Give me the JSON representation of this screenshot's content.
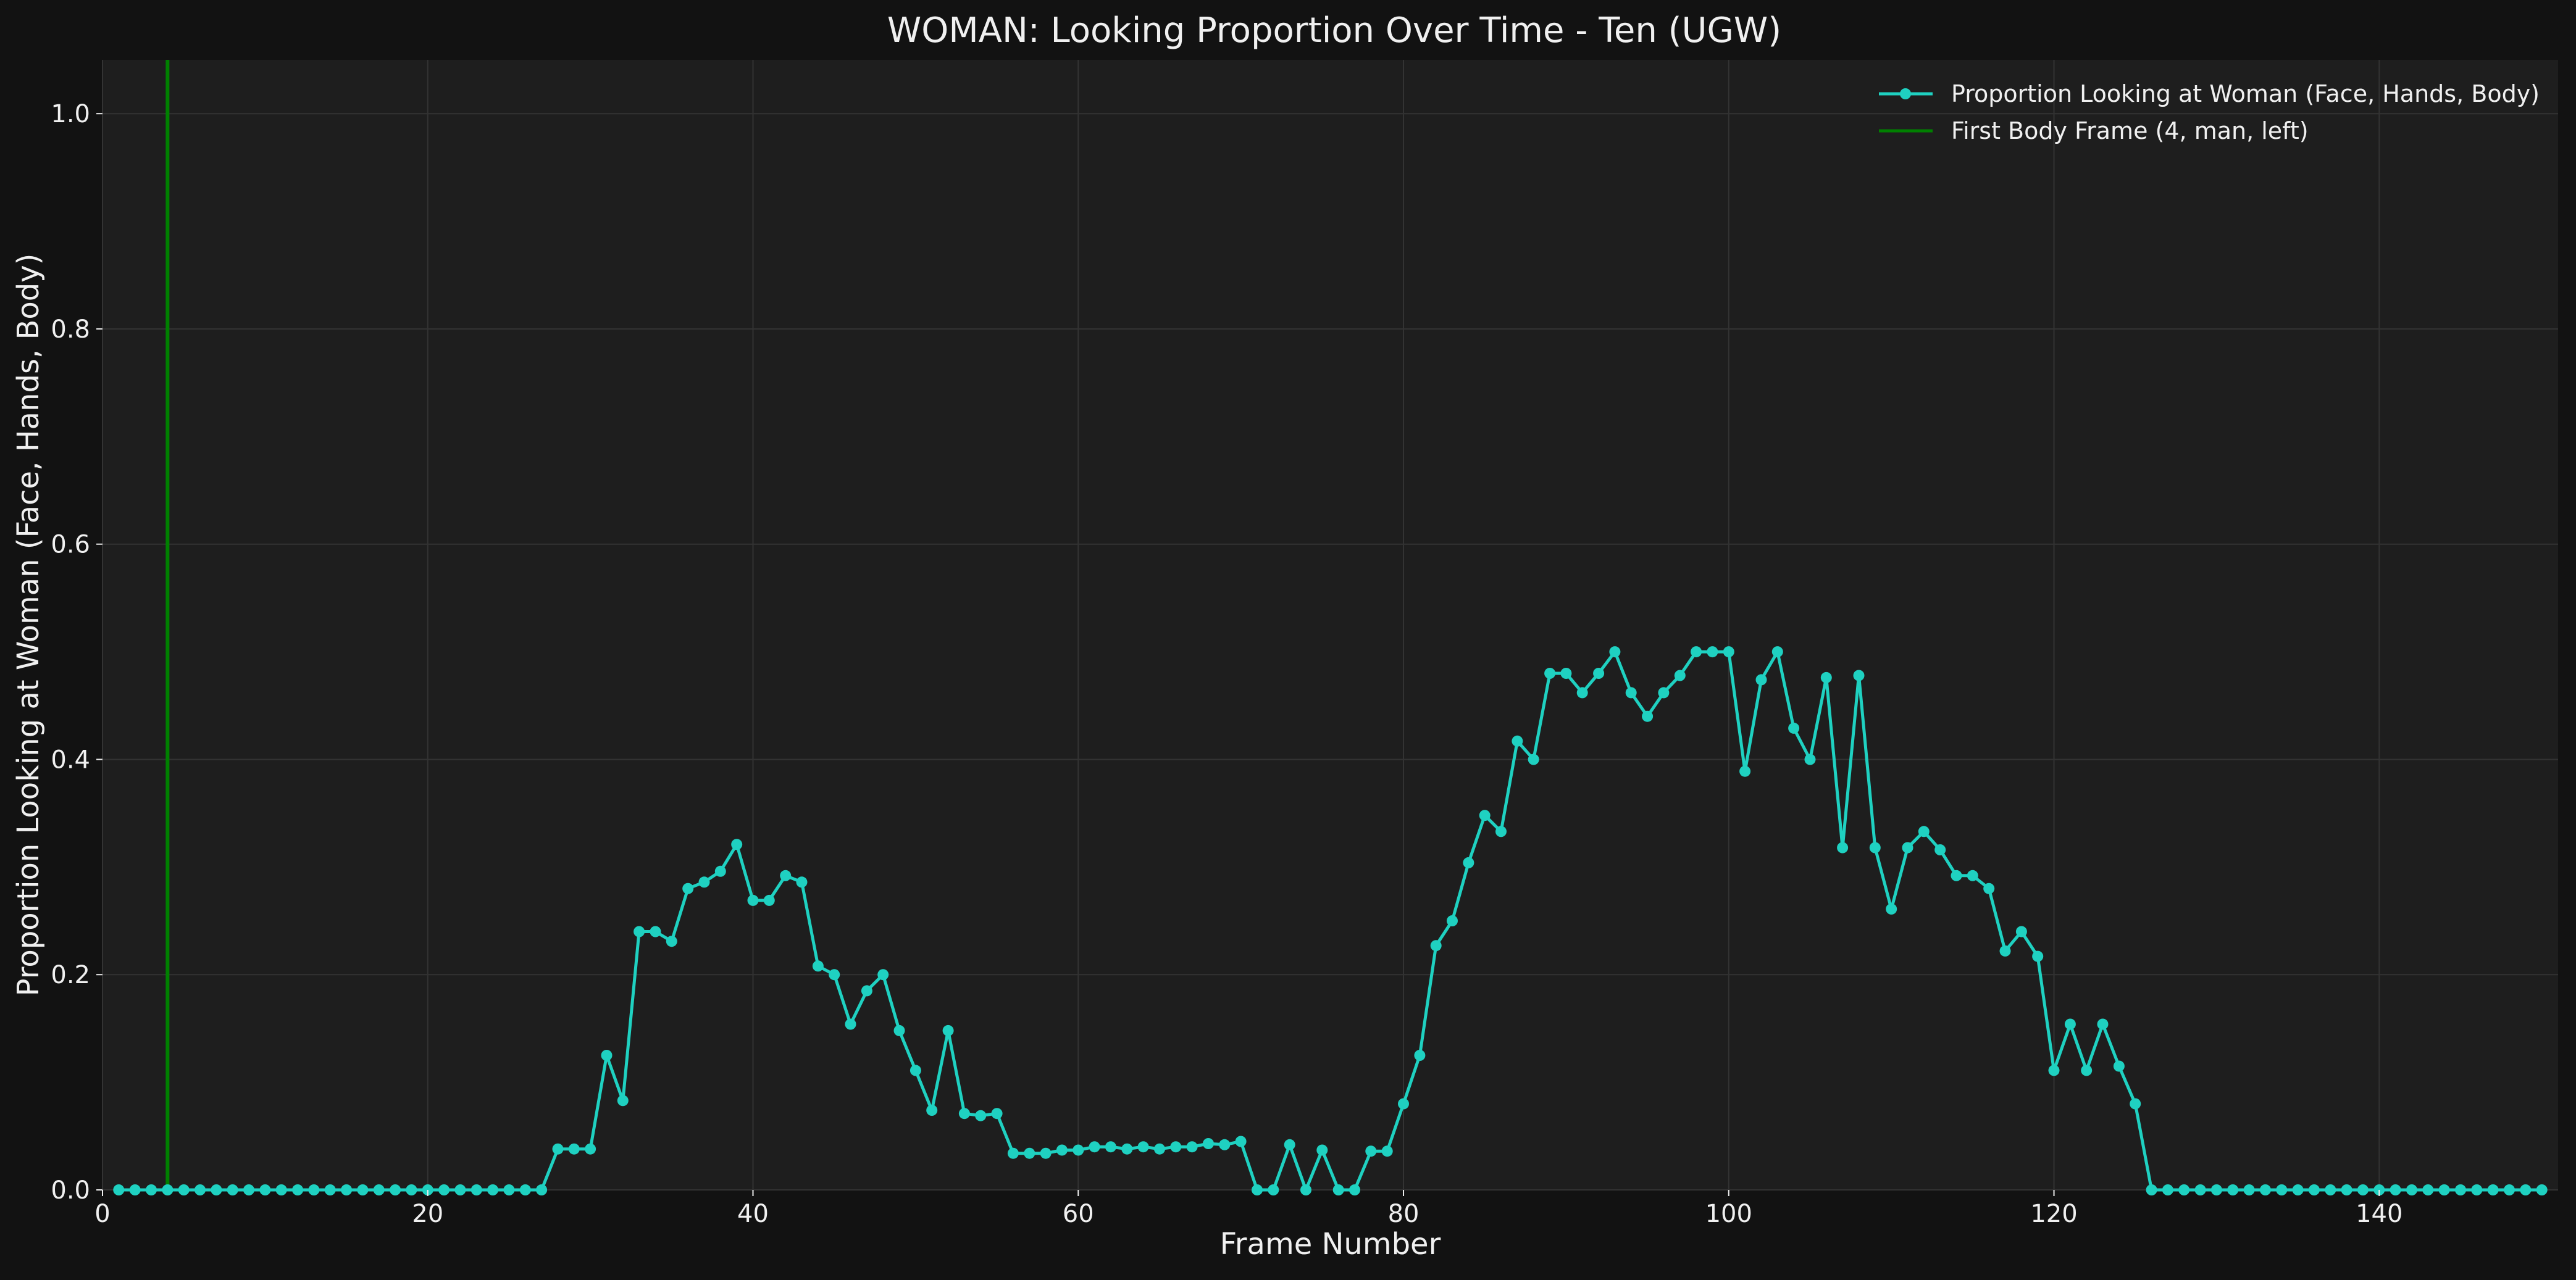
{
  "chart_data": {
    "type": "line",
    "title": "WOMAN: Looking Proportion Over Time - Ten (UGW)",
    "xlabel": "Frame Number",
    "ylabel": "Proportion Looking at Woman (Face, Hands, Body)",
    "xlim": [
      0,
      151
    ],
    "ylim": [
      0,
      1.05
    ],
    "xticks": [
      0,
      20,
      40,
      60,
      80,
      100,
      120,
      140
    ],
    "yticks": [
      0.0,
      0.2,
      0.4,
      0.6,
      0.8,
      1.0
    ],
    "xtick_labels": [
      "0",
      "20",
      "40",
      "60",
      "80",
      "100",
      "120",
      "140"
    ],
    "ytick_labels": [
      "0.0",
      "0.2",
      "0.4",
      "0.6",
      "0.8",
      "1.0"
    ],
    "grid": true,
    "legend_position": "top-right",
    "colors": {
      "figure_background": "#121212",
      "plot_background": "#1e1e1e",
      "grid": "#333333",
      "text": "#f0f0f0",
      "series": "#1fd1c1",
      "vline": "#008000"
    },
    "series": [
      {
        "name": "Proportion Looking at Woman (Face, Hands, Body)",
        "x_start": 1,
        "x_step": 1,
        "values": [
          0,
          0,
          0,
          0,
          0,
          0,
          0,
          0,
          0,
          0,
          0,
          0,
          0,
          0,
          0,
          0,
          0,
          0,
          0,
          0,
          0,
          0,
          0,
          0,
          0,
          0,
          0,
          0.038,
          0.038,
          0.038,
          0.125,
          0.083,
          0.24,
          0.24,
          0.231,
          0.28,
          0.286,
          0.296,
          0.321,
          0.269,
          0.269,
          0.292,
          0.286,
          0.208,
          0.2,
          0.154,
          0.185,
          0.2,
          0.148,
          0.111,
          0.074,
          0.148,
          0.071,
          0.069,
          0.071,
          0.034,
          0.034,
          0.034,
          0.037,
          0.037,
          0.04,
          0.04,
          0.038,
          0.04,
          0.038,
          0.04,
          0.04,
          0.043,
          0.042,
          0.045,
          0,
          0,
          0.042,
          0,
          0.037,
          0,
          0,
          0.036,
          0.036,
          0.08,
          0.125,
          0.227,
          0.25,
          0.304,
          0.348,
          0.333,
          0.417,
          0.4,
          0.48,
          0.48,
          0.462,
          0.48,
          0.5,
          0.462,
          0.44,
          0.462,
          0.478,
          0.5,
          0.5,
          0.5,
          0.389,
          0.474,
          0.5,
          0.429,
          0.4,
          0.476,
          0.318,
          0.478,
          0.318,
          0.261,
          0.318,
          0.333,
          0.316,
          0.292,
          0.292,
          0.28,
          0.222,
          0.24,
          0.217,
          0.111,
          0.154,
          0.111,
          0.154,
          0.115,
          0.08,
          0,
          0,
          0,
          0,
          0,
          0,
          0,
          0,
          0,
          0,
          0,
          0,
          0,
          0,
          0,
          0,
          0,
          0,
          0,
          0,
          0,
          0,
          0,
          0,
          0
        ]
      }
    ],
    "vlines": [
      {
        "name": "First Body Frame (4, man, left)",
        "x": 4
      }
    ]
  }
}
